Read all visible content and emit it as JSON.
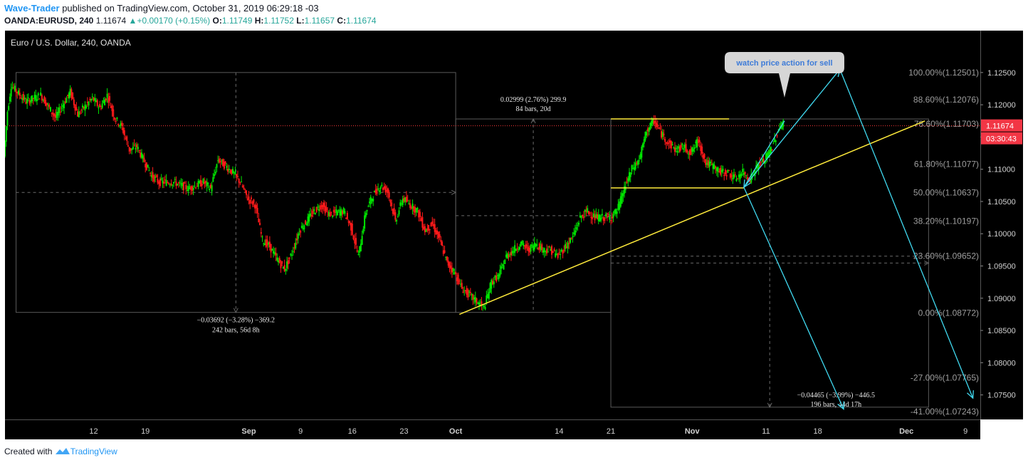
{
  "header": {
    "author": "Wave-Trader",
    "published_text": "published on TradingView.com, October 31, 2019 06:29:18 -03",
    "symbol": "OANDA:EURUSD, 240",
    "last": "1.11674",
    "change": "+0.00170 (+0.15%)",
    "o_label": "O:",
    "o": "1.11749",
    "h_label": "H:",
    "h": "1.11752",
    "l_label": "L:",
    "l": "1.11657",
    "c_label": "C:",
    "c": "1.11674"
  },
  "footer": {
    "created_with": "Created with",
    "brand": "TradingView"
  },
  "colors": {
    "background": "#000000",
    "up": "#00e600",
    "down": "#ff1a1a",
    "trendline": "#ffeb3b",
    "arrow": "#40d9f0",
    "price_badge": "#f23645"
  },
  "chart_data": {
    "type": "candlestick",
    "title": "Euro / U.S. Dollar, 240, OANDA",
    "ylim": [
      1.0712,
      1.1315
    ],
    "y_ticks": [
      "1.12500",
      "1.12000",
      "1.11500",
      "1.11000",
      "1.10500",
      "1.10000",
      "1.09500",
      "1.09000",
      "1.08500",
      "1.08000",
      "1.07500"
    ],
    "y_tick_values": [
      1.125,
      1.12,
      1.115,
      1.11,
      1.105,
      1.1,
      1.095,
      1.09,
      1.085,
      1.08,
      1.075
    ],
    "x_ticks": [
      "12",
      "19",
      "Sep",
      "9",
      "16",
      "23",
      "Oct",
      "14",
      "21",
      "Nov",
      "11",
      "18",
      "Dec",
      "9"
    ],
    "x_tick_days": [
      12,
      19,
      33,
      40,
      47,
      54,
      61,
      75,
      82,
      93,
      103,
      110,
      122,
      130
    ],
    "xlim_days": [
      0,
      132
    ],
    "current_price": "1.11674",
    "current_price_value": 1.11674,
    "countdown": "03:30:43",
    "price_path": [
      [
        0,
        1.112
      ],
      [
        0.5,
        1.119
      ],
      [
        1,
        1.123
      ],
      [
        3,
        1.1205
      ],
      [
        5,
        1.1215
      ],
      [
        7,
        1.118
      ],
      [
        9,
        1.122
      ],
      [
        10,
        1.1185
      ],
      [
        12,
        1.121
      ],
      [
        13,
        1.1195
      ],
      [
        14,
        1.1215
      ],
      [
        15,
        1.118
      ],
      [
        16,
        1.1165
      ],
      [
        17,
        1.113
      ],
      [
        18,
        1.1135
      ],
      [
        20,
        1.109
      ],
      [
        21,
        1.108
      ],
      [
        23,
        1.108
      ],
      [
        25,
        1.107
      ],
      [
        27,
        1.108
      ],
      [
        28,
        1.107
      ],
      [
        29,
        1.1115
      ],
      [
        30,
        1.1105
      ],
      [
        31,
        1.1095
      ],
      [
        32,
        1.108
      ],
      [
        33,
        1.1055
      ],
      [
        34,
        1.1045
      ],
      [
        35,
        1.099
      ],
      [
        36,
        1.098
      ],
      [
        37,
        1.096
      ],
      [
        38,
        1.0945
      ],
      [
        39,
        1.097
      ],
      [
        40,
        1.1005
      ],
      [
        41,
        1.102
      ],
      [
        42,
        1.1035
      ],
      [
        43,
        1.1045
      ],
      [
        44,
        1.103
      ],
      [
        46,
        1.1035
      ],
      [
        47,
        1.101
      ],
      [
        48,
        1.0965
      ],
      [
        49,
        1.1035
      ],
      [
        50,
        1.106
      ],
      [
        51,
        1.1075
      ],
      [
        52,
        1.1065
      ],
      [
        53,
        1.102
      ],
      [
        54,
        1.1055
      ],
      [
        55,
        1.1045
      ],
      [
        56,
        1.1035
      ],
      [
        57,
        1.1005
      ],
      [
        58,
        1.1015
      ],
      [
        59,
        1.099
      ],
      [
        60,
        1.0955
      ],
      [
        61,
        1.094
      ],
      [
        62,
        1.0915
      ],
      [
        63,
        1.0905
      ],
      [
        64,
        1.0895
      ],
      [
        65,
        1.0885
      ],
      [
        66,
        1.0925
      ],
      [
        67,
        1.0935
      ],
      [
        68,
        1.0965
      ],
      [
        69,
        1.0975
      ],
      [
        70,
        1.0985
      ],
      [
        71,
        1.0975
      ],
      [
        72,
        1.0985
      ],
      [
        73,
        1.0975
      ],
      [
        74,
        1.0975
      ],
      [
        75,
        1.0965
      ],
      [
        76,
        1.098
      ],
      [
        77,
        1.0995
      ],
      [
        78,
        1.1025
      ],
      [
        79,
        1.1035
      ],
      [
        80,
        1.1025
      ],
      [
        81,
        1.1025
      ],
      [
        82,
        1.1025
      ],
      [
        83,
        1.1035
      ],
      [
        84,
        1.107
      ],
      [
        85,
        1.11
      ],
      [
        86,
        1.1115
      ],
      [
        87,
        1.116
      ],
      [
        88,
        1.1175
      ],
      [
        89,
        1.1155
      ],
      [
        90,
        1.114
      ],
      [
        91,
        1.113
      ],
      [
        92,
        1.1135
      ],
      [
        93,
        1.1125
      ],
      [
        94,
        1.1145
      ],
      [
        95,
        1.111
      ],
      [
        96,
        1.1105
      ],
      [
        97,
        1.1095
      ],
      [
        98,
        1.1095
      ],
      [
        99,
        1.1085
      ],
      [
        100,
        1.1095
      ],
      [
        101,
        1.1085
      ],
      [
        102,
        1.1105
      ],
      [
        103,
        1.1115
      ],
      [
        104,
        1.1135
      ],
      [
        105,
        1.1165
      ],
      [
        105.5,
        1.1175
      ]
    ],
    "trendline_rising": {
      "x1_day": 61.5,
      "y1": 1.0875,
      "x2_day": 124.5,
      "y2": 1.1175
    },
    "resistance_line": {
      "x1_day": 82,
      "x2_day": 98,
      "y": 1.1178
    },
    "support_line": {
      "x1_day": 82,
      "x2_day": 100,
      "y": 1.1071
    },
    "projection_arrows": [
      {
        "from_day": 105.5,
        "from_y": 1.1175,
        "to_day": 100,
        "to_y": 1.1072
      },
      {
        "from_day": 100,
        "from_y": 1.1072,
        "to_day": 113,
        "to_y": 1.1255
      },
      {
        "from_day": 113,
        "from_y": 1.1255,
        "to_day": 131,
        "to_y": 1.0745
      },
      {
        "from_day": 100,
        "from_y": 1.1072,
        "to_day": 113.5,
        "to_y": 1.0728
      }
    ],
    "callout": {
      "text": "watch price action for sell",
      "day": 105.5,
      "y": 1.1185
    },
    "fib_retracement": {
      "levels": [
        {
          "label": "100.00%(1.12501)",
          "value": 1.12501
        },
        {
          "label": "88.60%(1.12076)",
          "value": 1.12076
        },
        {
          "label": "78.60%(1.11703)",
          "value": 1.11703
        },
        {
          "label": "61.80%(1.11077)",
          "value": 1.11077
        },
        {
          "label": "50.00%(1.10637)",
          "value": 1.10637
        },
        {
          "label": "38.20%(1.10197)",
          "value": 1.10197
        },
        {
          "label": "23.60%(1.09652)",
          "value": 1.09652
        },
        {
          "label": "0.00%(1.08772)",
          "value": 1.08772
        },
        {
          "label": "-27.00%(1.07765)",
          "value": 1.07765
        },
        {
          "label": "-41.00%(1.07243)",
          "value": 1.07243
        }
      ]
    },
    "measurements": [
      {
        "line1": "−0.03692 (−3.28%) −369.2",
        "line2": "242 bars, 56d 8h",
        "day1": 1.5,
        "day2": 61,
        "y_top": 1.125,
        "y_bottom": 1.0878,
        "direction": "down"
      },
      {
        "line1": "0.02999 (2.76%) 299.9",
        "line2": "84 bars, 20d",
        "day1": 61,
        "day2": 82,
        "y_top": 1.1178,
        "y_bottom": 1.0878,
        "direction": "up"
      },
      {
        "line1": "−0.04465 (−3.99%) −446.5",
        "line2": "196 bars, 44d 17h",
        "day1": 82,
        "day2": 125,
        "y_top": 1.1178,
        "y_bottom": 1.0731,
        "direction": "down"
      }
    ]
  }
}
